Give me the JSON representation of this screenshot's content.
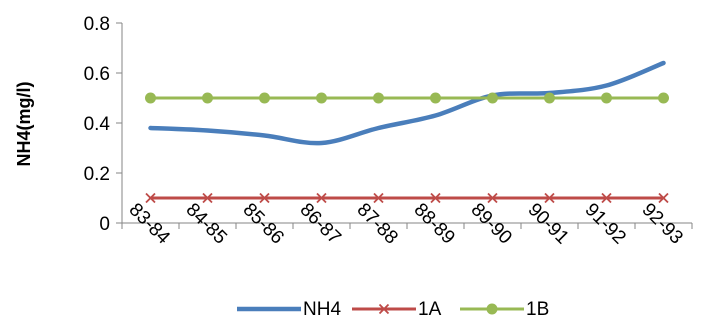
{
  "chart_data": {
    "type": "line",
    "title": "",
    "xlabel": "",
    "ylabel": "NH4(mg/l)",
    "categories": [
      "83-84",
      "84-85",
      "85-86",
      "86-87",
      "87-88",
      "88-89",
      "89-90",
      "90-91",
      "91-92",
      "92-93"
    ],
    "ylim": [
      0,
      0.8
    ],
    "yticks": [
      "0",
      "0.2",
      "0.4",
      "0.6",
      "0.8"
    ],
    "grid": false,
    "legend": "bottom",
    "series": [
      {
        "name": "NH4",
        "values": [
          0.38,
          0.37,
          0.35,
          0.32,
          0.38,
          0.43,
          0.51,
          0.52,
          0.55,
          0.64
        ],
        "color": "#4a7ebb",
        "marker": "none"
      },
      {
        "name": "1A",
        "values": [
          0.1,
          0.1,
          0.1,
          0.1,
          0.1,
          0.1,
          0.1,
          0.1,
          0.1,
          0.1
        ],
        "color": "#be4b48",
        "marker": "x"
      },
      {
        "name": "1B",
        "values": [
          0.5,
          0.5,
          0.5,
          0.5,
          0.5,
          0.5,
          0.5,
          0.5,
          0.5,
          0.5
        ],
        "color": "#98b954",
        "marker": "circle"
      }
    ]
  }
}
